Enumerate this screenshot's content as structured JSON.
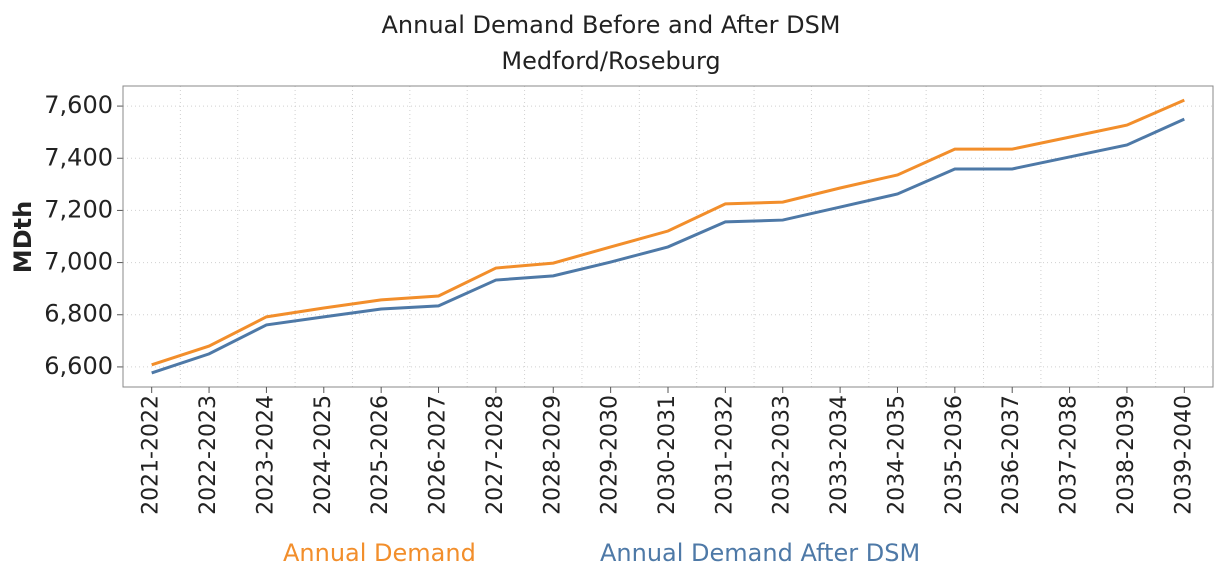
{
  "chart_data": {
    "type": "line",
    "title": "Annual Demand Before and After DSM",
    "subtitle": "Medford/Roseburg",
    "y_label": "MDth",
    "categories": [
      "2021-2022",
      "2022-2023",
      "2023-2024",
      "2024-2025",
      "2025-2026",
      "2026-2027",
      "2027-2028",
      "2028-2029",
      "2029-2030",
      "2030-2031",
      "2031-2032",
      "2032-2033",
      "2033-2034",
      "2034-2035",
      "2035-2036",
      "2036-2037",
      "2037-2038",
      "2038-2039",
      "2039-2040"
    ],
    "series": [
      {
        "name": "Annual Demand",
        "color": "#f28e2b",
        "values": [
          6608,
          6680,
          6792,
          6826,
          6857,
          6872,
          6979,
          6998,
          7060,
          7121,
          7225,
          7232,
          7286,
          7336,
          7435,
          7435,
          7481,
          7527,
          7623
        ]
      },
      {
        "name": "Annual Demand After DSM",
        "color": "#4e79a7",
        "values": [
          6577,
          6650,
          6761,
          6792,
          6822,
          6834,
          6933,
          6949,
          7002,
          7060,
          7156,
          7163,
          7213,
          7263,
          7359,
          7359,
          7405,
          7451,
          7550
        ]
      }
    ],
    "ylim": [
      6523,
      7677
    ],
    "yticks": [
      {
        "value": 6600,
        "label": "6,600"
      },
      {
        "value": 6800,
        "label": "6,800"
      },
      {
        "value": 7000,
        "label": "7,000"
      },
      {
        "value": 7200,
        "label": "7,200"
      },
      {
        "value": 7400,
        "label": "7,400"
      },
      {
        "value": 7600,
        "label": "7,600"
      }
    ],
    "grid": true,
    "legend": "bottom"
  }
}
